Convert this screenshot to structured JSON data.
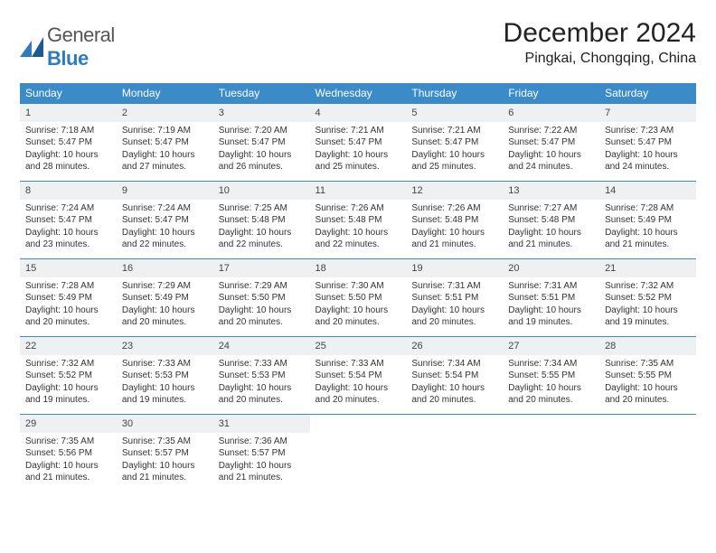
{
  "brand": {
    "part1": "General",
    "part2": "Blue"
  },
  "title": "December 2024",
  "location": "Pingkai, Chongqing, China",
  "colors": {
    "accent": "#3b8bc9",
    "datebar": "#eef0f2",
    "text": "#222222"
  },
  "dayHeaders": [
    "Sunday",
    "Monday",
    "Tuesday",
    "Wednesday",
    "Thursday",
    "Friday",
    "Saturday"
  ],
  "weeks": [
    [
      {
        "d": "1",
        "sr": "Sunrise: 7:18 AM",
        "ss": "Sunset: 5:47 PM",
        "dl": "Daylight: 10 hours and 28 minutes."
      },
      {
        "d": "2",
        "sr": "Sunrise: 7:19 AM",
        "ss": "Sunset: 5:47 PM",
        "dl": "Daylight: 10 hours and 27 minutes."
      },
      {
        "d": "3",
        "sr": "Sunrise: 7:20 AM",
        "ss": "Sunset: 5:47 PM",
        "dl": "Daylight: 10 hours and 26 minutes."
      },
      {
        "d": "4",
        "sr": "Sunrise: 7:21 AM",
        "ss": "Sunset: 5:47 PM",
        "dl": "Daylight: 10 hours and 25 minutes."
      },
      {
        "d": "5",
        "sr": "Sunrise: 7:21 AM",
        "ss": "Sunset: 5:47 PM",
        "dl": "Daylight: 10 hours and 25 minutes."
      },
      {
        "d": "6",
        "sr": "Sunrise: 7:22 AM",
        "ss": "Sunset: 5:47 PM",
        "dl": "Daylight: 10 hours and 24 minutes."
      },
      {
        "d": "7",
        "sr": "Sunrise: 7:23 AM",
        "ss": "Sunset: 5:47 PM",
        "dl": "Daylight: 10 hours and 24 minutes."
      }
    ],
    [
      {
        "d": "8",
        "sr": "Sunrise: 7:24 AM",
        "ss": "Sunset: 5:47 PM",
        "dl": "Daylight: 10 hours and 23 minutes."
      },
      {
        "d": "9",
        "sr": "Sunrise: 7:24 AM",
        "ss": "Sunset: 5:47 PM",
        "dl": "Daylight: 10 hours and 22 minutes."
      },
      {
        "d": "10",
        "sr": "Sunrise: 7:25 AM",
        "ss": "Sunset: 5:48 PM",
        "dl": "Daylight: 10 hours and 22 minutes."
      },
      {
        "d": "11",
        "sr": "Sunrise: 7:26 AM",
        "ss": "Sunset: 5:48 PM",
        "dl": "Daylight: 10 hours and 22 minutes."
      },
      {
        "d": "12",
        "sr": "Sunrise: 7:26 AM",
        "ss": "Sunset: 5:48 PM",
        "dl": "Daylight: 10 hours and 21 minutes."
      },
      {
        "d": "13",
        "sr": "Sunrise: 7:27 AM",
        "ss": "Sunset: 5:48 PM",
        "dl": "Daylight: 10 hours and 21 minutes."
      },
      {
        "d": "14",
        "sr": "Sunrise: 7:28 AM",
        "ss": "Sunset: 5:49 PM",
        "dl": "Daylight: 10 hours and 21 minutes."
      }
    ],
    [
      {
        "d": "15",
        "sr": "Sunrise: 7:28 AM",
        "ss": "Sunset: 5:49 PM",
        "dl": "Daylight: 10 hours and 20 minutes."
      },
      {
        "d": "16",
        "sr": "Sunrise: 7:29 AM",
        "ss": "Sunset: 5:49 PM",
        "dl": "Daylight: 10 hours and 20 minutes."
      },
      {
        "d": "17",
        "sr": "Sunrise: 7:29 AM",
        "ss": "Sunset: 5:50 PM",
        "dl": "Daylight: 10 hours and 20 minutes."
      },
      {
        "d": "18",
        "sr": "Sunrise: 7:30 AM",
        "ss": "Sunset: 5:50 PM",
        "dl": "Daylight: 10 hours and 20 minutes."
      },
      {
        "d": "19",
        "sr": "Sunrise: 7:31 AM",
        "ss": "Sunset: 5:51 PM",
        "dl": "Daylight: 10 hours and 20 minutes."
      },
      {
        "d": "20",
        "sr": "Sunrise: 7:31 AM",
        "ss": "Sunset: 5:51 PM",
        "dl": "Daylight: 10 hours and 19 minutes."
      },
      {
        "d": "21",
        "sr": "Sunrise: 7:32 AM",
        "ss": "Sunset: 5:52 PM",
        "dl": "Daylight: 10 hours and 19 minutes."
      }
    ],
    [
      {
        "d": "22",
        "sr": "Sunrise: 7:32 AM",
        "ss": "Sunset: 5:52 PM",
        "dl": "Daylight: 10 hours and 19 minutes."
      },
      {
        "d": "23",
        "sr": "Sunrise: 7:33 AM",
        "ss": "Sunset: 5:53 PM",
        "dl": "Daylight: 10 hours and 19 minutes."
      },
      {
        "d": "24",
        "sr": "Sunrise: 7:33 AM",
        "ss": "Sunset: 5:53 PM",
        "dl": "Daylight: 10 hours and 20 minutes."
      },
      {
        "d": "25",
        "sr": "Sunrise: 7:33 AM",
        "ss": "Sunset: 5:54 PM",
        "dl": "Daylight: 10 hours and 20 minutes."
      },
      {
        "d": "26",
        "sr": "Sunrise: 7:34 AM",
        "ss": "Sunset: 5:54 PM",
        "dl": "Daylight: 10 hours and 20 minutes."
      },
      {
        "d": "27",
        "sr": "Sunrise: 7:34 AM",
        "ss": "Sunset: 5:55 PM",
        "dl": "Daylight: 10 hours and 20 minutes."
      },
      {
        "d": "28",
        "sr": "Sunrise: 7:35 AM",
        "ss": "Sunset: 5:55 PM",
        "dl": "Daylight: 10 hours and 20 minutes."
      }
    ],
    [
      {
        "d": "29",
        "sr": "Sunrise: 7:35 AM",
        "ss": "Sunset: 5:56 PM",
        "dl": "Daylight: 10 hours and 21 minutes."
      },
      {
        "d": "30",
        "sr": "Sunrise: 7:35 AM",
        "ss": "Sunset: 5:57 PM",
        "dl": "Daylight: 10 hours and 21 minutes."
      },
      {
        "d": "31",
        "sr": "Sunrise: 7:36 AM",
        "ss": "Sunset: 5:57 PM",
        "dl": "Daylight: 10 hours and 21 minutes."
      },
      null,
      null,
      null,
      null
    ]
  ]
}
